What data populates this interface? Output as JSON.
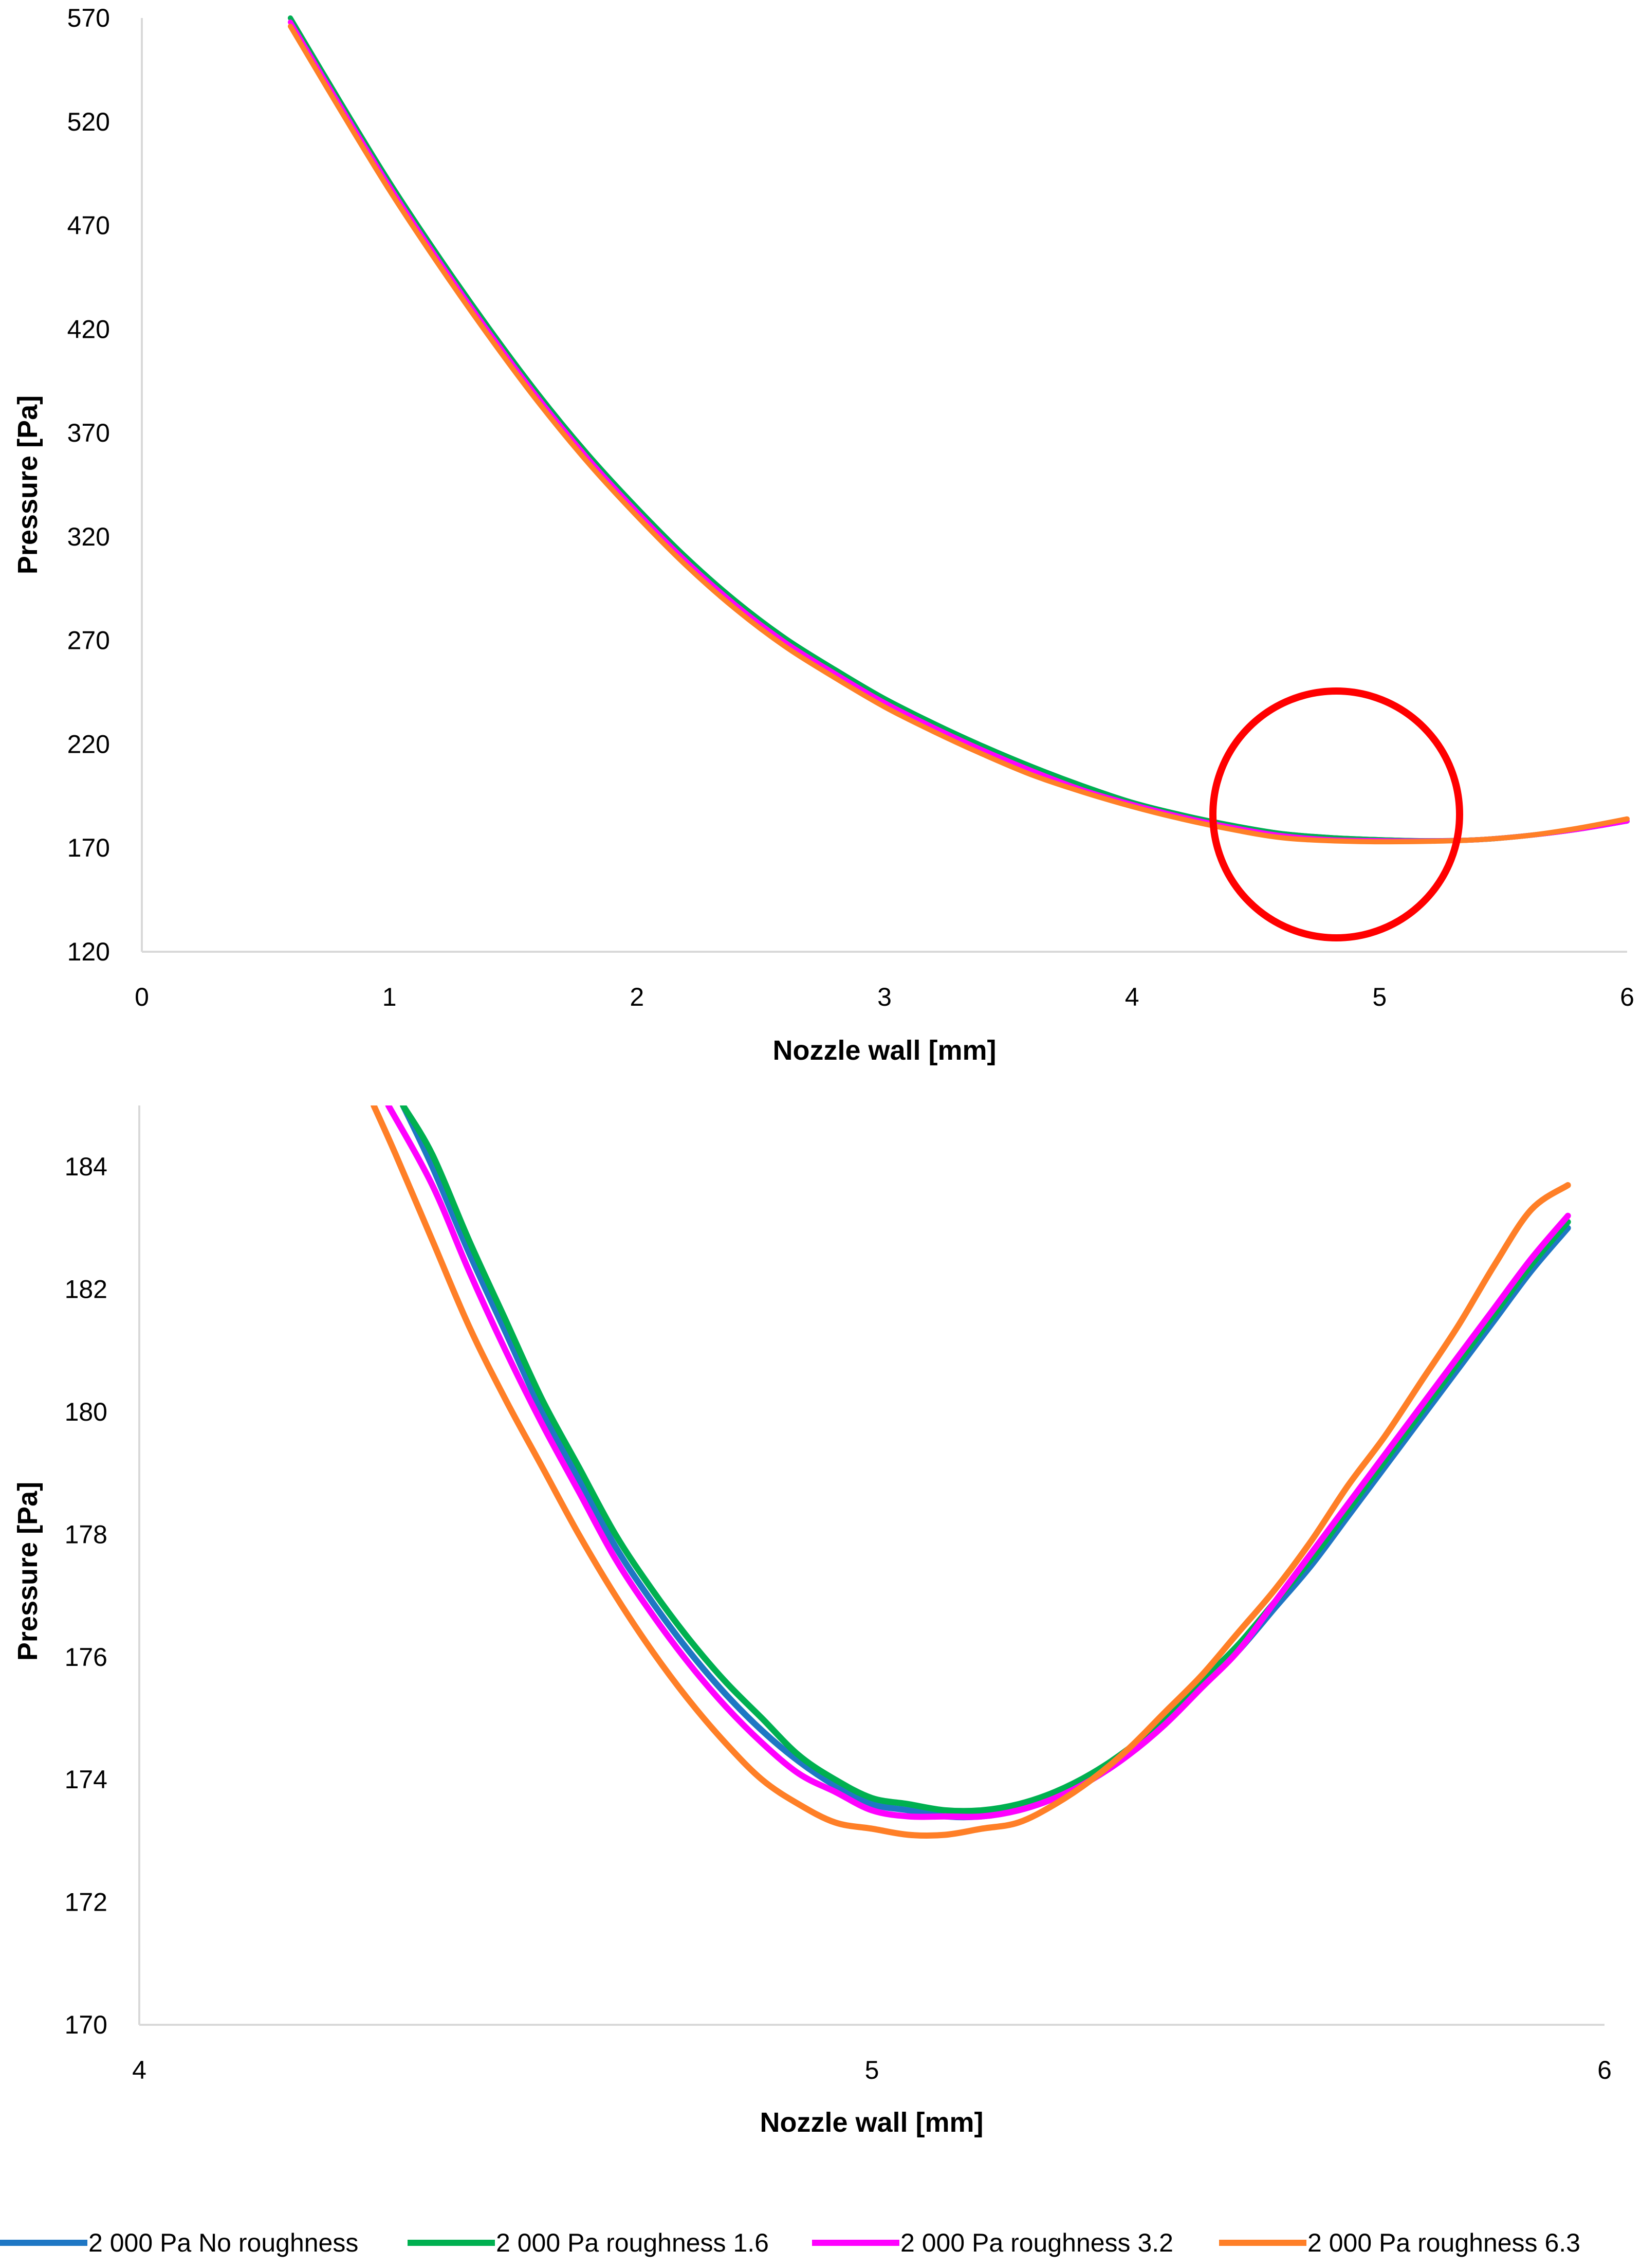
{
  "chart_data": [
    {
      "type": "line",
      "xlabel": "Nozzle wall [mm]",
      "ylabel": "Pressure [Pa]",
      "xlim": [
        0,
        6
      ],
      "ylim": [
        120,
        570
      ],
      "xticks": [
        "0",
        "1",
        "2",
        "3",
        "4",
        "5",
        "6"
      ],
      "yticks": [
        "120",
        "170",
        "220",
        "270",
        "320",
        "370",
        "420",
        "470",
        "520",
        "570"
      ],
      "grid": false,
      "annotation": "red circle highlighting the minimum region around x = 4.8",
      "series": [
        {
          "name": "2 000 Pa No roughness",
          "color": "#1f77c4",
          "x": [
            0.6,
            0.8,
            1.0,
            1.2,
            1.4,
            1.6,
            1.8,
            2.0,
            2.2,
            2.4,
            2.6,
            2.8,
            3.0,
            3.2,
            3.4,
            3.6,
            3.8,
            4.0,
            4.2,
            4.4,
            4.6,
            4.8,
            5.0,
            5.2,
            5.4,
            5.6,
            5.8,
            6.0
          ],
          "values": [
            570,
            530,
            491,
            455,
            421,
            389,
            360,
            334,
            310,
            289,
            271,
            256,
            242,
            230,
            219,
            209,
            200,
            192,
            186,
            181,
            177,
            175,
            174,
            173.5,
            174,
            176,
            179,
            183
          ]
        },
        {
          "name": "2 000 Pa roughness 1.6",
          "color": "#00b050",
          "x": [
            0.6,
            0.8,
            1.0,
            1.2,
            1.4,
            1.6,
            1.8,
            2.0,
            2.2,
            2.4,
            2.6,
            2.8,
            3.0,
            3.2,
            3.4,
            3.6,
            3.8,
            4.0,
            4.2,
            4.4,
            4.6,
            4.8,
            5.0,
            5.2,
            5.4,
            5.6,
            5.8,
            6.0
          ],
          "values": [
            570,
            530,
            491,
            455,
            421,
            389,
            360,
            334,
            310,
            289,
            271,
            256,
            242,
            230,
            219,
            209,
            200,
            192,
            186,
            181,
            177,
            175,
            174,
            173.5,
            174,
            176,
            179,
            183
          ]
        },
        {
          "name": "2 000 Pa roughness 3.2",
          "color": "#ff00ff",
          "x": [
            0.6,
            0.8,
            1.0,
            1.2,
            1.4,
            1.6,
            1.8,
            2.0,
            2.2,
            2.4,
            2.6,
            2.8,
            3.0,
            3.2,
            3.4,
            3.6,
            3.8,
            4.0,
            4.2,
            4.4,
            4.6,
            4.8,
            5.0,
            5.2,
            5.4,
            5.6,
            5.8,
            6.0
          ],
          "values": [
            568,
            528,
            489,
            453,
            419,
            387,
            358,
            332,
            308,
            287,
            269,
            254,
            240,
            228,
            217,
            207,
            198,
            191,
            185,
            180,
            176,
            174,
            173.5,
            173.4,
            174,
            176,
            179,
            183
          ]
        },
        {
          "name": "2 000 Pa roughness 6.3",
          "color": "#ff7f27",
          "x": [
            0.6,
            0.8,
            1.0,
            1.2,
            1.4,
            1.6,
            1.8,
            2.0,
            2.2,
            2.4,
            2.6,
            2.8,
            3.0,
            3.2,
            3.4,
            3.6,
            3.8,
            4.0,
            4.2,
            4.4,
            4.6,
            4.8,
            5.0,
            5.2,
            5.4,
            5.6,
            5.8,
            6.0
          ],
          "values": [
            566,
            526,
            487,
            451,
            417,
            385,
            356,
            330,
            306,
            285,
            267,
            252,
            238,
            226,
            215,
            205,
            197,
            190,
            184,
            179,
            175,
            173.5,
            173,
            173.2,
            174,
            176,
            179.5,
            184
          ]
        }
      ]
    },
    {
      "type": "line",
      "xlabel": "Nozzle wall [mm]",
      "ylabel": "Pressure [Pa]",
      "xlim": [
        4,
        6
      ],
      "ylim": [
        170,
        185
      ],
      "xticks": [
        "4",
        "5",
        "6"
      ],
      "yticks": [
        "170",
        "172",
        "174",
        "176",
        "178",
        "180",
        "182",
        "184"
      ],
      "grid": false,
      "series": [
        {
          "name": "2 000 Pa No roughness",
          "color": "#1f77c4",
          "x": [
            4.36,
            4.4,
            4.45,
            4.5,
            4.55,
            4.6,
            4.65,
            4.7,
            4.75,
            4.8,
            4.85,
            4.9,
            4.95,
            5.0,
            5.05,
            5.1,
            5.15,
            5.2,
            5.25,
            5.3,
            5.35,
            5.4,
            5.45,
            5.5,
            5.55,
            5.6,
            5.65,
            5.7,
            5.75,
            5.8,
            5.85,
            5.9,
            5.95
          ],
          "values": [
            185.0,
            184.0,
            182.6,
            181.3,
            180.0,
            178.9,
            177.8,
            176.9,
            176.1,
            175.4,
            174.8,
            174.3,
            173.9,
            173.6,
            173.5,
            173.4,
            173.4,
            173.5,
            173.7,
            174.0,
            174.4,
            174.9,
            175.5,
            176.1,
            176.8,
            177.5,
            178.3,
            179.1,
            179.9,
            180.7,
            181.5,
            182.3,
            183.0
          ]
        },
        {
          "name": "2 000 Pa roughness 1.6",
          "color": "#00b050",
          "x": [
            4.36,
            4.4,
            4.45,
            4.5,
            4.55,
            4.6,
            4.65,
            4.7,
            4.75,
            4.8,
            4.85,
            4.9,
            4.95,
            5.0,
            5.05,
            5.1,
            5.15,
            5.2,
            5.25,
            5.3,
            5.35,
            5.4,
            5.45,
            5.5,
            5.55,
            5.6,
            5.65,
            5.7,
            5.75,
            5.8,
            5.85,
            5.9,
            5.95
          ],
          "values": [
            185.0,
            184.2,
            182.8,
            181.5,
            180.2,
            179.1,
            178.0,
            177.1,
            176.3,
            175.6,
            175.0,
            174.4,
            174.0,
            173.7,
            173.6,
            173.5,
            173.5,
            173.6,
            173.8,
            174.1,
            174.5,
            175.0,
            175.6,
            176.2,
            176.9,
            177.6,
            178.4,
            179.2,
            180.0,
            180.8,
            181.6,
            182.4,
            183.1
          ]
        },
        {
          "name": "2 000 Pa roughness 3.2",
          "color": "#ff00ff",
          "x": [
            4.34,
            4.4,
            4.45,
            4.5,
            4.55,
            4.6,
            4.65,
            4.7,
            4.75,
            4.8,
            4.85,
            4.9,
            4.95,
            5.0,
            5.05,
            5.1,
            5.15,
            5.2,
            5.25,
            5.3,
            5.35,
            5.4,
            5.45,
            5.5,
            5.55,
            5.6,
            5.65,
            5.7,
            5.75,
            5.8,
            5.85,
            5.9,
            5.95
          ],
          "values": [
            185.0,
            183.7,
            182.3,
            181.0,
            179.8,
            178.7,
            177.6,
            176.7,
            175.9,
            175.2,
            174.6,
            174.1,
            173.8,
            173.5,
            173.4,
            173.4,
            173.4,
            173.5,
            173.7,
            174.0,
            174.4,
            174.9,
            175.5,
            176.1,
            176.9,
            177.7,
            178.5,
            179.3,
            180.1,
            180.9,
            181.7,
            182.5,
            183.2
          ]
        },
        {
          "name": "2 000 Pa roughness 6.3",
          "color": "#ff7f27",
          "x": [
            4.32,
            4.35,
            4.4,
            4.45,
            4.5,
            4.55,
            4.6,
            4.65,
            4.7,
            4.75,
            4.8,
            4.85,
            4.9,
            4.95,
            5.0,
            5.05,
            5.1,
            5.15,
            5.2,
            5.25,
            5.3,
            5.35,
            5.4,
            5.45,
            5.5,
            5.55,
            5.6,
            5.65,
            5.7,
            5.75,
            5.8,
            5.85,
            5.9,
            5.95
          ],
          "values": [
            185.0,
            184.2,
            182.8,
            181.4,
            180.2,
            179.1,
            178.0,
            177.0,
            176.1,
            175.3,
            174.6,
            174.0,
            173.6,
            173.3,
            173.2,
            173.1,
            173.1,
            173.2,
            173.3,
            173.6,
            174.0,
            174.5,
            175.1,
            175.7,
            176.4,
            177.1,
            177.9,
            178.8,
            179.6,
            180.5,
            181.4,
            182.4,
            183.3,
            183.7
          ]
        }
      ]
    }
  ]
}
